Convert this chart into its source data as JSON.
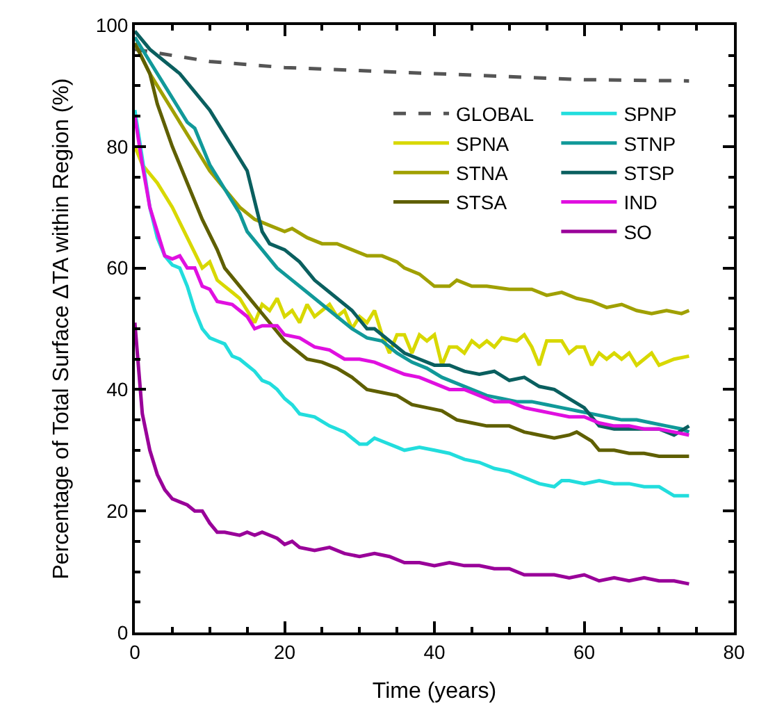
{
  "chart_data": {
    "type": "line",
    "xlabel": "Time (years)",
    "ylabel": "Percentage of Total Surface ΔTA within Region (%)",
    "xlim": [
      0,
      80
    ],
    "xticks": [
      0,
      20,
      40,
      60,
      80
    ],
    "ylim": [
      0,
      100
    ],
    "yticks": [
      0,
      20,
      40,
      60,
      80,
      100
    ],
    "legend": "top right",
    "line_style": "solid",
    "series": [
      {
        "name": "GLOBAL",
        "color": "#555555",
        "line_style": "dashed",
        "x": [
          0,
          5,
          10,
          15,
          20,
          30,
          40,
          50,
          60,
          74
        ],
        "values": [
          96,
          95,
          94,
          93.5,
          93,
          92.5,
          92,
          91.5,
          91,
          90.8
        ]
      },
      {
        "name": "SPNA",
        "color": "#d8d800",
        "x": [
          0,
          1,
          3,
          5,
          7,
          9,
          10,
          11,
          12,
          13,
          14,
          15,
          16,
          17,
          18,
          19,
          20,
          21,
          22,
          23,
          24,
          26,
          27,
          28,
          29,
          30,
          31,
          32,
          33,
          34,
          35,
          36,
          37,
          38,
          39,
          40,
          41,
          42,
          43,
          44,
          45,
          46,
          47,
          48,
          49,
          51,
          52,
          53,
          54,
          55,
          57,
          58,
          59,
          60,
          61,
          62,
          63,
          64,
          65,
          66,
          67,
          68,
          69,
          70,
          72,
          74
        ],
        "values": [
          80,
          77,
          74,
          70,
          65,
          60,
          61,
          58,
          57,
          56,
          55,
          53,
          51,
          54,
          53,
          55,
          52,
          53,
          51,
          54,
          52,
          54,
          52,
          53,
          50,
          52,
          51,
          53,
          49,
          46,
          49,
          49,
          46,
          49,
          48,
          49,
          44,
          47,
          47,
          46,
          48,
          47,
          48,
          47,
          48.5,
          48,
          49,
          47,
          44,
          48,
          48,
          46,
          47,
          47,
          44,
          46,
          45,
          46,
          45,
          46,
          44,
          45,
          46,
          44,
          45,
          45.5
        ]
      },
      {
        "name": "STNA",
        "color": "#a0a000",
        "x": [
          0,
          2,
          4,
          6,
          8,
          10,
          12,
          14,
          16,
          18,
          20,
          21,
          23,
          25,
          27,
          29,
          31,
          33,
          35,
          36,
          38,
          40,
          42,
          43,
          45,
          47,
          50,
          53,
          55,
          57,
          59,
          61,
          63,
          65,
          67,
          69,
          71,
          73,
          74
        ],
        "values": [
          97,
          92,
          88,
          84,
          80,
          76,
          73,
          70,
          68,
          67,
          66,
          66.5,
          65,
          64,
          64,
          63,
          62,
          62,
          61,
          60,
          59,
          57,
          57,
          58,
          57,
          57,
          56.5,
          56.5,
          55.5,
          56,
          55,
          54.5,
          53.5,
          54,
          53,
          52.5,
          53,
          52.5,
          53
        ]
      },
      {
        "name": "STSA",
        "color": "#5f5f00",
        "x": [
          0,
          2,
          3,
          5,
          7,
          9,
          11,
          12,
          14,
          16,
          18,
          20,
          21,
          23,
          25,
          27,
          29,
          31,
          33,
          35,
          37,
          39,
          41,
          43,
          45,
          47,
          50,
          52,
          54,
          56,
          58,
          59,
          61,
          62,
          64,
          66,
          68,
          70,
          74
        ],
        "values": [
          97,
          92,
          87,
          80,
          74,
          68,
          63,
          60,
          57,
          54,
          51,
          48,
          47,
          45,
          44.5,
          43.5,
          42,
          40,
          39.5,
          39,
          37.5,
          37,
          36.5,
          35,
          34.5,
          34,
          34,
          33,
          32.5,
          32,
          32.5,
          33,
          31.5,
          30,
          30,
          29.5,
          29.5,
          29,
          29
        ]
      },
      {
        "name": "SPNP",
        "color": "#22dddd",
        "x": [
          0,
          1,
          2,
          3,
          4,
          5,
          6,
          7,
          8,
          9,
          10,
          11,
          12,
          13,
          14,
          15,
          16,
          17,
          18,
          19,
          20,
          21,
          22,
          24,
          26,
          28,
          30,
          31,
          32,
          33,
          35,
          36,
          38,
          40,
          42,
          44,
          46,
          48,
          50,
          52,
          54,
          56,
          57,
          58,
          60,
          62,
          64,
          66,
          68,
          70,
          72,
          74
        ],
        "values": [
          86,
          78,
          70,
          65,
          62,
          60.5,
          60,
          57,
          53,
          50,
          48.5,
          48,
          47.5,
          45.5,
          45,
          44,
          43,
          41.5,
          41,
          40,
          38.5,
          37.5,
          36,
          35.5,
          34,
          33,
          31,
          31,
          32,
          31.5,
          30.5,
          30,
          30.5,
          30,
          29.5,
          28.5,
          28,
          27,
          26.5,
          25.5,
          24.5,
          24,
          25,
          25,
          24.5,
          25,
          24.5,
          24.5,
          24,
          24,
          22.5,
          22.5
        ]
      },
      {
        "name": "STNP",
        "color": "#119999",
        "x": [
          0,
          2,
          4,
          6,
          7,
          8,
          9,
          10,
          12,
          14,
          15,
          17,
          19,
          21,
          23,
          25,
          27,
          29,
          31,
          33,
          35,
          37,
          39,
          41,
          43,
          45,
          47,
          49,
          51,
          53,
          55,
          57,
          59,
          61,
          63,
          65,
          67,
          69,
          71,
          73,
          74
        ],
        "values": [
          98,
          94,
          90,
          86,
          84,
          83,
          80,
          77,
          73,
          69,
          66,
          63,
          60,
          58,
          56,
          54,
          52,
          50,
          48.5,
          48,
          46,
          44.5,
          43.5,
          42,
          41,
          40,
          39,
          38.5,
          38,
          38,
          37.5,
          37,
          36.5,
          36,
          35.5,
          35,
          35,
          34.5,
          34,
          33.5,
          33
        ]
      },
      {
        "name": "STSP",
        "color": "#0a5f5f",
        "x": [
          0,
          2,
          4,
          6,
          8,
          10,
          12,
          13,
          15,
          16,
          17,
          18,
          20,
          22,
          24,
          26,
          28,
          29,
          31,
          32,
          34,
          36,
          38,
          40,
          42,
          44,
          46,
          48,
          50,
          52,
          54,
          56,
          58,
          60,
          62,
          64,
          66,
          68,
          70,
          72,
          74
        ],
        "values": [
          99,
          96,
          94,
          92,
          89,
          86,
          82,
          80,
          76,
          71,
          66,
          64,
          63,
          61,
          58,
          56,
          54,
          53,
          50,
          50,
          48,
          46,
          45,
          44,
          44,
          43,
          42.5,
          43,
          41.5,
          42,
          40.5,
          40,
          38.5,
          37,
          34,
          33.5,
          33.5,
          33.5,
          33.5,
          32.5,
          34
        ]
      },
      {
        "name": "IND",
        "color": "#e010e0",
        "x": [
          0,
          1,
          2,
          3,
          4,
          5,
          6,
          7,
          8,
          9,
          10,
          11,
          13,
          14,
          15,
          16,
          17,
          19,
          20,
          22,
          24,
          26,
          28,
          30,
          32,
          34,
          36,
          38,
          40,
          42,
          44,
          46,
          48,
          50,
          52,
          54,
          56,
          58,
          60,
          62,
          64,
          66,
          68,
          70,
          72,
          74
        ],
        "values": [
          85,
          77,
          70,
          66,
          62,
          61.5,
          62,
          60,
          60,
          57,
          56.5,
          54.5,
          54,
          53,
          52,
          50,
          50.5,
          50.5,
          49,
          48.5,
          47,
          46.5,
          45,
          45,
          44.5,
          43.5,
          42.5,
          42,
          41,
          40,
          40,
          39,
          38,
          38,
          37,
          36.5,
          36,
          35.5,
          35.5,
          34.5,
          34,
          34,
          33.5,
          33.5,
          33,
          32.5
        ]
      },
      {
        "name": "SO",
        "color": "#990099",
        "x": [
          0,
          1,
          2,
          3,
          4,
          5,
          6,
          7,
          8,
          9,
          10,
          11,
          12,
          14,
          15,
          16,
          17,
          19,
          20,
          21,
          22,
          24,
          26,
          28,
          30,
          32,
          34,
          36,
          38,
          40,
          42,
          44,
          46,
          48,
          50,
          52,
          54,
          56,
          58,
          60,
          62,
          64,
          66,
          68,
          70,
          72,
          74
        ],
        "values": [
          51,
          36,
          30,
          26,
          23.5,
          22,
          21.5,
          21,
          20,
          20,
          18,
          16.5,
          16.5,
          16,
          16.5,
          16,
          16.5,
          15.5,
          14.5,
          15,
          14,
          13.5,
          14,
          13,
          12.5,
          13,
          12.5,
          11.5,
          11.5,
          11,
          11.5,
          11,
          11,
          10.5,
          10.5,
          9.5,
          9.5,
          9.5,
          9,
          9.5,
          8.5,
          9,
          8.5,
          9,
          8.5,
          8.5,
          8
        ]
      }
    ]
  }
}
